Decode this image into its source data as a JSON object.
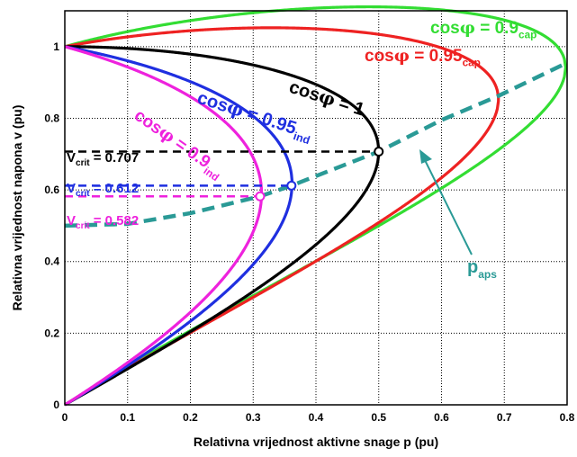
{
  "chart_data": {
    "type": "line",
    "xlabel": "Relativna vrijednost aktivne snage p (pu)",
    "ylabel": "Relativna vrijednost napona v (pu)",
    "xlim": [
      0,
      0.8
    ],
    "ylim": [
      0,
      1.1
    ],
    "x_ticks": [
      "0",
      "0.1",
      "0.2",
      "0.3",
      "0.4",
      "0.5",
      "0.6",
      "0.7",
      "0.8"
    ],
    "y_ticks": [
      "0",
      "0.2",
      "0.4",
      "0.6",
      "0.8",
      "1"
    ],
    "grid": true,
    "series": [
      {
        "name": "cosφ = 0.9_cap",
        "label_main": "cos",
        "label_phi": "φ",
        "label_rest": " = 0.9",
        "label_sub": "cap",
        "color": "#33dd33",
        "tan_sign": -1,
        "tan": 0.4843
      },
      {
        "name": "cosφ = 0.95_cap",
        "label_main": "cos",
        "label_phi": "φ",
        "label_rest": " = 0.95",
        "label_sub": "cap",
        "color": "#ee2222",
        "tan_sign": -1,
        "tan": 0.3287
      },
      {
        "name": "cosφ = 1",
        "label_main": "cos",
        "label_phi": "φ",
        "label_rest": " = 1",
        "label_sub": "",
        "color": "#000000",
        "tan_sign": 0,
        "tan": 0
      },
      {
        "name": "cosφ = 0.95_ind",
        "label_main": "cos",
        "label_phi": "φ",
        "label_rest": " = 0.95",
        "label_sub": "ind",
        "color": "#1f2fe0",
        "tan_sign": 1,
        "tan": 0.3287
      },
      {
        "name": "cosφ = 0.9_ind",
        "label_main": "cos",
        "label_phi": "φ",
        "label_rest": " = 0.9",
        "label_sub": "ind",
        "color": "#ee22dd",
        "tan_sign": 1,
        "tan": 0.4843
      }
    ],
    "critical_points": [
      {
        "label_v": "V",
        "label_sub": "crit",
        "label_val": " = 0.707",
        "p": 0.5,
        "v": 0.707,
        "color": "#000000"
      },
      {
        "label_v": "V",
        "label_sub": "crit",
        "label_val": " = 0.612",
        "p": 0.361,
        "v": 0.612,
        "color": "#1f2fe0"
      },
      {
        "label_v": "V",
        "label_sub": "crit",
        "label_val": " = 0.582",
        "p": 0.311,
        "v": 0.582,
        "color": "#ee22dd"
      }
    ],
    "paps": {
      "label_main": "p",
      "label_sub": "aps",
      "color": "#2a9a96",
      "points": [
        [
          0,
          0.5
        ],
        [
          0.1,
          0.505
        ],
        [
          0.2,
          0.535
        ],
        [
          0.311,
          0.582
        ],
        [
          0.361,
          0.612
        ],
        [
          0.5,
          0.707
        ],
        [
          0.6,
          0.795
        ],
        [
          0.69,
          0.862
        ],
        [
          0.8,
          0.955
        ]
      ]
    }
  }
}
